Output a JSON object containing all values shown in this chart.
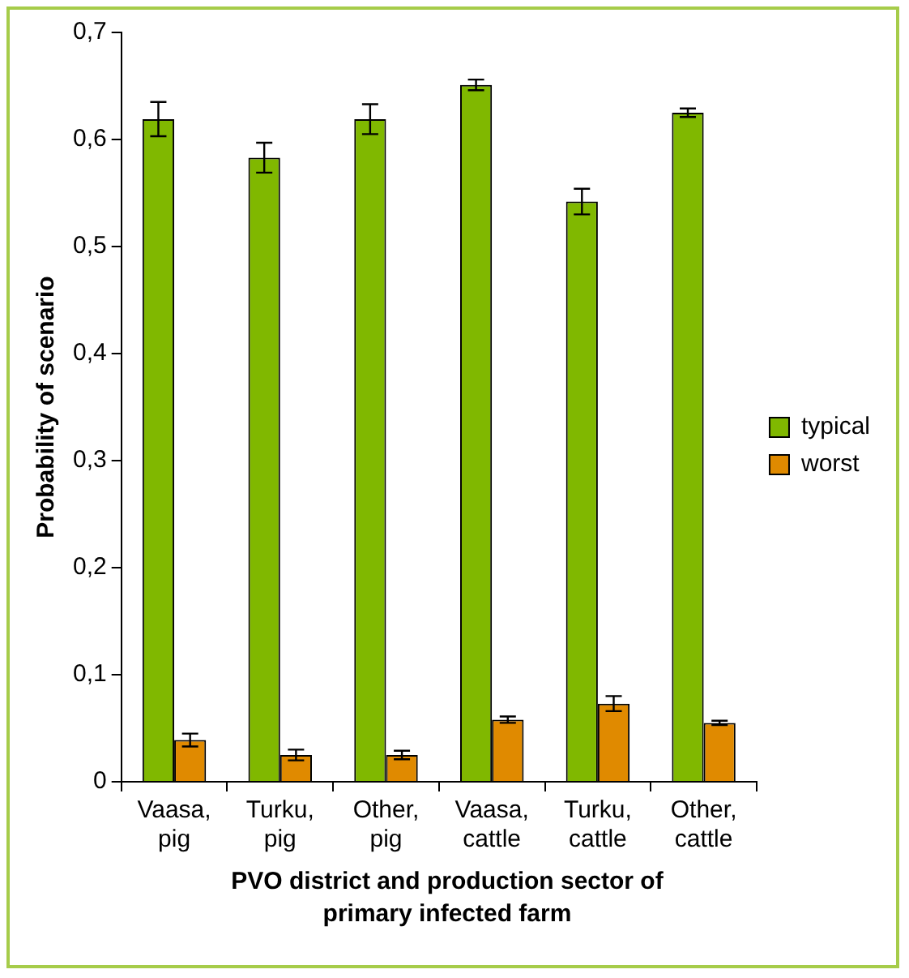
{
  "chart_data": {
    "type": "bar",
    "xlabel": "PVO district and production sector of primary infected farm",
    "ylabel": "Probability of scenario",
    "categories": [
      "Vaasa, pig",
      "Turku, pig",
      "Other, pig",
      "Vaasa, cattle",
      "Turku, cattle",
      "Other, cattle"
    ],
    "series": [
      {
        "name": "typical",
        "color": "#80b800",
        "values": [
          0.619,
          0.583,
          0.619,
          0.651,
          0.542,
          0.625
        ],
        "errors": [
          0.016,
          0.014,
          0.014,
          0.005,
          0.012,
          0.004
        ]
      },
      {
        "name": "worst",
        "color": "#e08a00",
        "values": [
          0.039,
          0.025,
          0.025,
          0.058,
          0.073,
          0.055
        ],
        "errors": [
          0.006,
          0.005,
          0.004,
          0.003,
          0.007,
          0.002
        ]
      }
    ],
    "ylim": [
      0,
      0.7
    ],
    "yticks": [
      {
        "value": 0,
        "label": "0"
      },
      {
        "value": 0.1,
        "label": "0,1"
      },
      {
        "value": 0.2,
        "label": "0,2"
      },
      {
        "value": 0.3,
        "label": "0,3"
      },
      {
        "value": 0.4,
        "label": "0,4"
      },
      {
        "value": 0.5,
        "label": "0,5"
      },
      {
        "value": 0.6,
        "label": "0,6"
      },
      {
        "value": 0.7,
        "label": "0,7"
      }
    ],
    "grid": false,
    "legend": "right"
  }
}
